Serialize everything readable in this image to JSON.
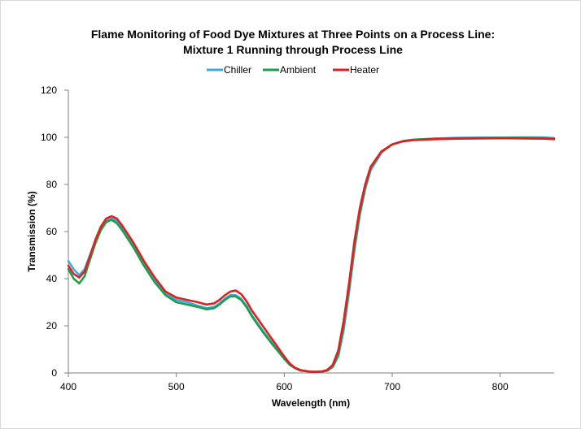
{
  "chart_data": {
    "type": "line",
    "title_line1": "Flame Monitoring of Food Dye Mixtures at Three Points on a Process Line:",
    "title_line2": "Mixture 1 Running through Process Line",
    "xlabel": "Wavelength (nm)",
    "ylabel": "Transmission (%)",
    "xlim": [
      400,
      850
    ],
    "ylim": [
      0,
      120
    ],
    "xticks": [
      400,
      500,
      600,
      700,
      800
    ],
    "yticks": [
      0,
      20,
      40,
      60,
      80,
      100,
      120
    ],
    "grid": false,
    "legend_position": "top",
    "x": [
      400,
      405,
      410,
      415,
      420,
      425,
      430,
      435,
      440,
      445,
      450,
      460,
      470,
      480,
      490,
      500,
      510,
      520,
      528,
      535,
      540,
      545,
      550,
      555,
      560,
      565,
      570,
      580,
      590,
      600,
      605,
      610,
      615,
      620,
      625,
      630,
      635,
      640,
      645,
      650,
      655,
      660,
      665,
      670,
      675,
      680,
      690,
      700,
      710,
      720,
      740,
      760,
      780,
      800,
      820,
      840,
      850
    ],
    "series": [
      {
        "name": "Chiller",
        "color": "#3fa9e0",
        "values": [
          47.5,
          44,
          41.5,
          44,
          50,
          56,
          61,
          64.5,
          65.5,
          64.5,
          61.5,
          54.5,
          46.5,
          39.5,
          33.5,
          31,
          30,
          28.5,
          27.5,
          28,
          29.5,
          31.5,
          33,
          33,
          31.5,
          28.5,
          24.5,
          18,
          12,
          6,
          3.5,
          2,
          1,
          0.8,
          0.5,
          0.5,
          0.6,
          1,
          2.5,
          7,
          18,
          34,
          52,
          67,
          78,
          86,
          93.5,
          97,
          98.4,
          99,
          99.5,
          99.8,
          99.9,
          99.9,
          100,
          100,
          99.7
        ]
      },
      {
        "name": "Ambient",
        "color": "#1e9e4a",
        "values": [
          44,
          40,
          38,
          41,
          48,
          55,
          60.5,
          64,
          65,
          63.5,
          60.5,
          53.5,
          45.5,
          38.5,
          33,
          30,
          29,
          28,
          27,
          27.5,
          29,
          31,
          32.5,
          32.5,
          31,
          28,
          24,
          17.5,
          11.5,
          6,
          3.5,
          2,
          1,
          0.8,
          0.5,
          0.5,
          0.6,
          1,
          2.8,
          8,
          20,
          36,
          54,
          68,
          79,
          87,
          93.8,
          97,
          98.4,
          99,
          99.4,
          99.6,
          99.7,
          99.8,
          99.8,
          99.7,
          99.5
        ]
      },
      {
        "name": "Heater",
        "color": "#e02020",
        "values": [
          45.5,
          42,
          40.5,
          43,
          49.5,
          56.5,
          62,
          65.5,
          66.5,
          65.5,
          62.5,
          55.5,
          47.5,
          40.5,
          34.5,
          32,
          31,
          30,
          29,
          29.5,
          31,
          33,
          34.5,
          35,
          33.5,
          30.5,
          26.5,
          20,
          13.5,
          7,
          4,
          2.2,
          1.2,
          0.8,
          0.5,
          0.5,
          0.7,
          1.3,
          3.5,
          9.5,
          22,
          38,
          56,
          70,
          80,
          87.5,
          94,
          97,
          98.3,
          98.8,
          99.2,
          99.4,
          99.5,
          99.6,
          99.5,
          99.4,
          99.2
        ]
      }
    ]
  }
}
